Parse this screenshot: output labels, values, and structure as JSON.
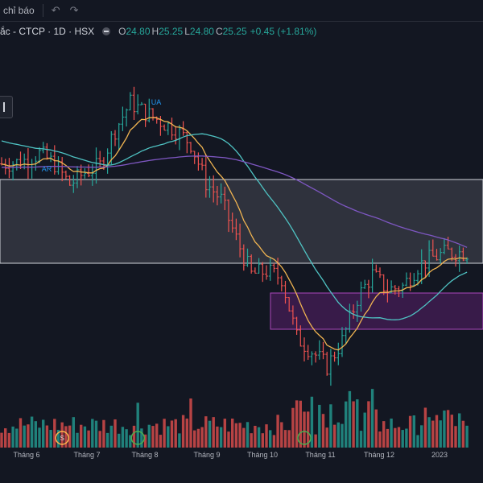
{
  "toolbar": {
    "indicators_label": "chỉ báo",
    "undo_icon": "undo-icon",
    "redo_icon": "redo-icon"
  },
  "legend": {
    "symbol": "ắc - CTCP · 1D · HSX",
    "open_key": "O",
    "open": "24.80",
    "high_key": "H",
    "high": "25.25",
    "low_key": "L",
    "low": "24.80",
    "close_key": "C",
    "close": "25.25",
    "change": "+0.45 (+1.81%)"
  },
  "colors": {
    "up": "#26a69a",
    "down": "#ef5350",
    "ema_short": "#f0b451",
    "ema_mid": "#4fc3c3",
    "ema_long": "#7e57c2",
    "gray_zone": "#9598a1",
    "purple_zone": "#9c27b0"
  },
  "chart_data": {
    "type": "candlestick",
    "x_labels": [
      "Tháng 6",
      "Tháng 7",
      "Tháng 8",
      "Tháng 9",
      "Tháng 10",
      "Tháng 11",
      "Tháng 12",
      "2023"
    ],
    "annotations": [
      "AR",
      "UA"
    ],
    "zones": [
      {
        "name": "gray",
        "color": "#9598a1"
      },
      {
        "name": "purple",
        "color": "#9c27b0"
      }
    ],
    "anchors": [
      [
        0,
        30.4
      ],
      [
        5,
        30.5
      ],
      [
        10,
        31.0
      ],
      [
        14,
        30.4
      ],
      [
        18,
        29.2
      ],
      [
        22,
        29.9
      ],
      [
        26,
        30.3
      ],
      [
        30,
        32.4
      ],
      [
        34,
        34.0
      ],
      [
        38,
        33.4
      ],
      [
        42,
        32.9
      ],
      [
        46,
        32.4
      ],
      [
        50,
        31.6
      ],
      [
        54,
        29.3
      ],
      [
        58,
        28.3
      ],
      [
        62,
        26.0
      ],
      [
        66,
        23.9
      ],
      [
        70,
        24.1
      ],
      [
        74,
        23.7
      ],
      [
        78,
        20.2
      ],
      [
        82,
        19.4
      ],
      [
        86,
        18.5
      ],
      [
        90,
        20.0
      ],
      [
        94,
        22.5
      ],
      [
        98,
        23.9
      ],
      [
        102,
        23.0
      ],
      [
        106,
        23.2
      ],
      [
        110,
        24.4
      ],
      [
        114,
        24.9
      ],
      [
        118,
        25.2
      ]
    ],
    "price_range": [
      17.8,
      35.3
    ],
    "volume_range": [
      0,
      100
    ]
  },
  "markers": [
    {
      "kind": "s-circle",
      "label": "S",
      "color": "#ffb74d",
      "index": 16
    },
    {
      "kind": "circle",
      "label": "",
      "color": "#4caf50",
      "index": 36
    },
    {
      "kind": "circle",
      "label": "",
      "color": "#4caf50",
      "index": 80
    }
  ]
}
